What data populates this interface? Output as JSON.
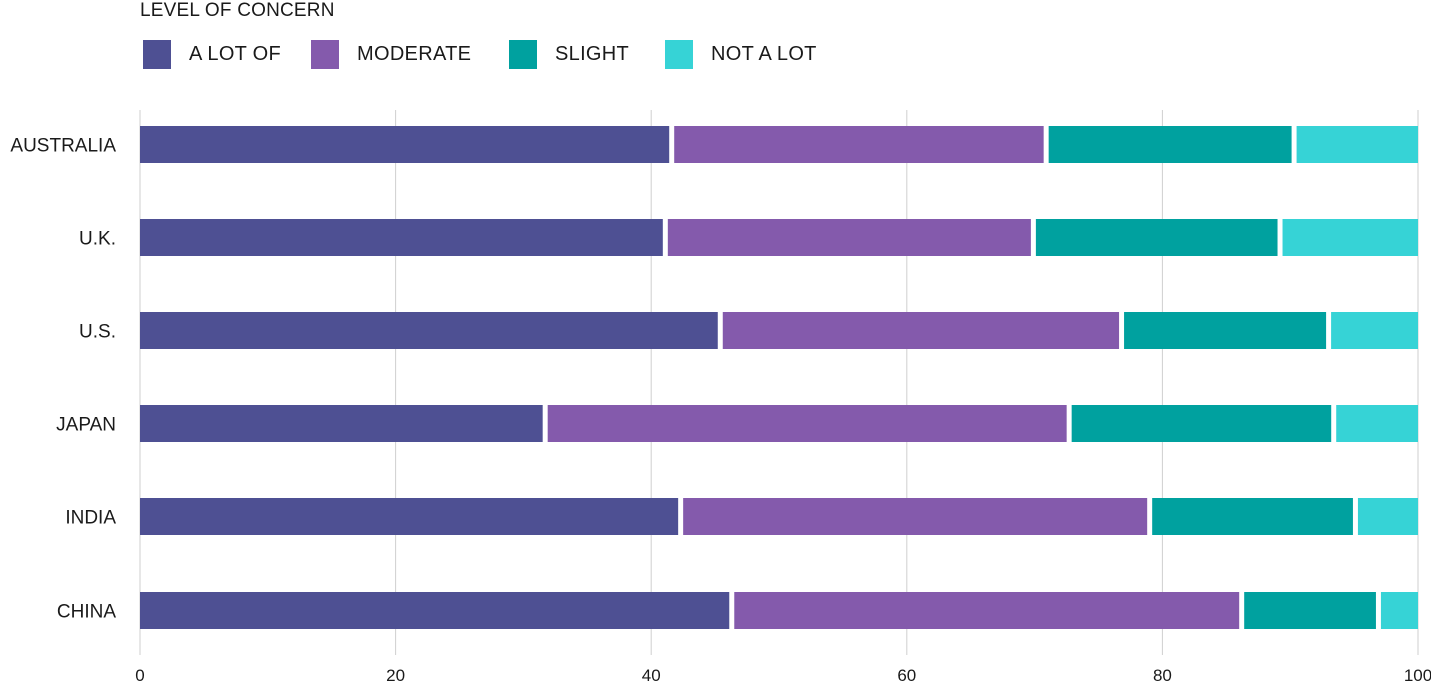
{
  "legend": {
    "title": "LEVEL OF CONCERN",
    "items": [
      {
        "label": "A LOT OF",
        "color": "#4e5093"
      },
      {
        "label": "MODERATE",
        "color": "#845aac"
      },
      {
        "label": "SLIGHT",
        "color": "#00a19f"
      },
      {
        "label": "NOT A LOT",
        "color": "#36d3d6"
      }
    ]
  },
  "chart_data": {
    "type": "bar",
    "orientation": "horizontal",
    "stacked": true,
    "title": "",
    "xlabel": "",
    "ylabel": "",
    "xlim": [
      0,
      100
    ],
    "x_ticks": [
      0,
      20,
      40,
      60,
      80,
      100
    ],
    "grid": "vertical",
    "legend_position": "top-left",
    "categories": [
      "AUSTRALIA",
      "U.K.",
      "U.S.",
      "JAPAN",
      "INDIA",
      "CHINA"
    ],
    "series": [
      {
        "name": "A LOT OF",
        "color": "#4e5093",
        "values": [
          41.8,
          41.3,
          45.6,
          31.9,
          42.5,
          46.5
        ]
      },
      {
        "name": "MODERATE",
        "color": "#845aac",
        "values": [
          29.3,
          28.8,
          31.4,
          41.0,
          36.7,
          39.9
        ]
      },
      {
        "name": "SLIGHT",
        "color": "#00a19f",
        "values": [
          19.4,
          19.3,
          16.2,
          20.7,
          16.1,
          10.7
        ]
      },
      {
        "name": "NOT A LOT",
        "color": "#36d3d6",
        "values": [
          9.5,
          10.6,
          6.8,
          6.4,
          4.7,
          2.9
        ]
      }
    ]
  }
}
